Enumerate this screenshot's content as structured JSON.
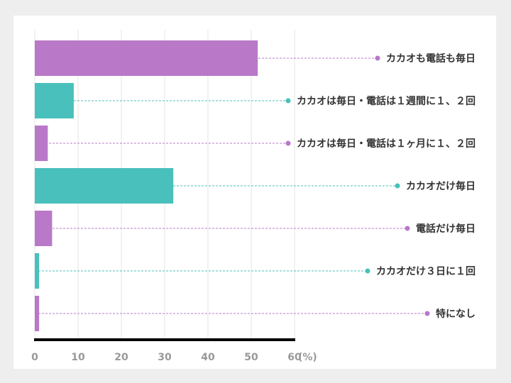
{
  "colors": {
    "background": "#eeeeee",
    "card": "#ffffff",
    "purple": "#b978c8",
    "teal": "#49c0bb",
    "gridline": "#e6e6e6",
    "axis": "#000000",
    "label_text": "#333333",
    "tick_text": "#999999"
  },
  "chart_data": {
    "type": "bar",
    "orientation": "horizontal",
    "title": "",
    "xlabel": "",
    "ylabel": "",
    "unit_label": "(%)",
    "xlim": [
      0,
      60
    ],
    "x_ticks": [
      "0",
      "10",
      "20",
      "30",
      "40",
      "50",
      "60"
    ],
    "grid": true,
    "legend": "none",
    "categories": [
      "カカオも電話も毎日",
      "カカオは毎日・電話は１週間に１、２回",
      "カカオは毎日・電話は１ヶ月に１、２回",
      "カカオだけ毎日",
      "電話だけ毎日",
      "カカオだけ３日に１回",
      "特になし"
    ],
    "values": [
      51.5,
      9,
      3,
      32,
      4,
      1,
      1
    ],
    "bar_colors": [
      "purple",
      "teal",
      "purple",
      "teal",
      "purple",
      "teal",
      "purple"
    ]
  }
}
